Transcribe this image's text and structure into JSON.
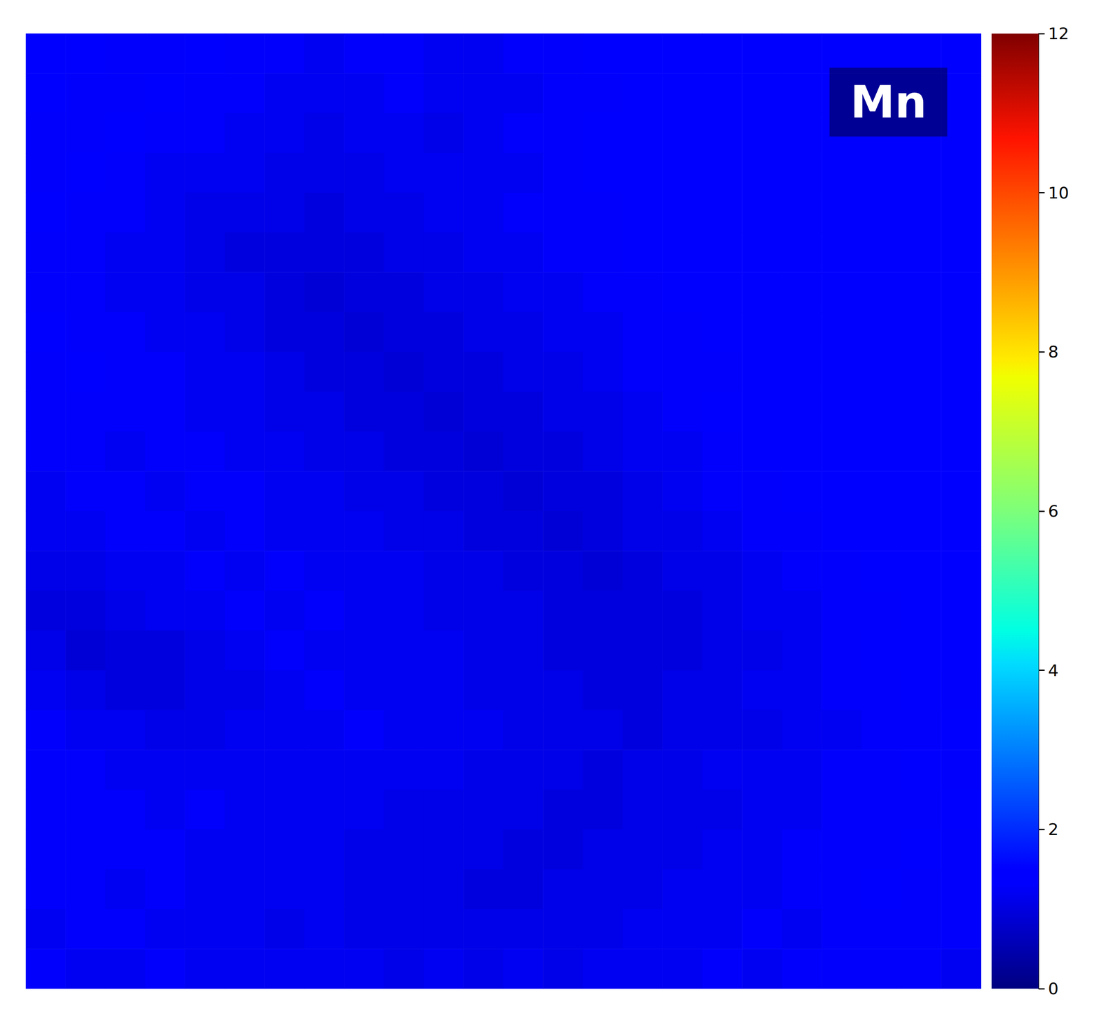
{
  "chart_data": {
    "type": "heatmap",
    "title": "Mn",
    "tick_labels": false,
    "colorbar": {
      "range": [
        0,
        12
      ],
      "ticks": [
        0,
        2,
        4,
        6,
        8,
        10,
        12
      ]
    },
    "cells": [
      [
        1.4,
        1.4,
        1.3,
        1.3,
        1.4,
        1.3,
        1.3,
        1.2,
        1.3,
        1.3,
        1.2,
        1.2,
        1.3,
        1.3,
        1.4,
        1.4,
        1.4,
        1.5,
        1.5,
        1.5,
        1.4,
        1.5,
        1.5,
        1.5
      ],
      [
        1.4,
        1.3,
        1.3,
        1.4,
        1.3,
        1.3,
        1.2,
        1.2,
        1.2,
        1.3,
        1.2,
        1.2,
        1.2,
        1.3,
        1.3,
        1.4,
        1.5,
        1.5,
        1.4,
        1.5,
        1.5,
        1.4,
        1.5,
        1.5
      ],
      [
        1.3,
        1.3,
        1.4,
        1.3,
        1.3,
        1.2,
        1.2,
        1.1,
        1.2,
        1.2,
        1.1,
        1.2,
        1.3,
        1.3,
        1.4,
        1.4,
        1.4,
        1.5,
        1.5,
        1.5,
        1.4,
        1.5,
        1.5,
        1.4
      ],
      [
        1.3,
        1.4,
        1.3,
        1.2,
        1.2,
        1.2,
        1.1,
        1.1,
        1.1,
        1.2,
        1.2,
        1.2,
        1.2,
        1.3,
        1.4,
        1.4,
        1.5,
        1.4,
        1.5,
        1.5,
        1.5,
        1.5,
        1.4,
        1.5
      ],
      [
        1.4,
        1.3,
        1.3,
        1.2,
        1.1,
        1.1,
        1.1,
        1.0,
        1.1,
        1.1,
        1.2,
        1.2,
        1.3,
        1.3,
        1.3,
        1.4,
        1.4,
        1.5,
        1.5,
        1.4,
        1.5,
        1.5,
        1.5,
        1.4
      ],
      [
        1.3,
        1.3,
        1.2,
        1.2,
        1.1,
        1.0,
        1.0,
        1.0,
        1.0,
        1.1,
        1.1,
        1.2,
        1.2,
        1.3,
        1.3,
        1.4,
        1.4,
        1.4,
        1.5,
        1.5,
        1.4,
        1.5,
        1.4,
        1.5
      ],
      [
        1.3,
        1.3,
        1.2,
        1.2,
        1.1,
        1.1,
        1.0,
        0.9,
        1.0,
        1.0,
        1.1,
        1.1,
        1.2,
        1.2,
        1.3,
        1.3,
        1.4,
        1.4,
        1.4,
        1.5,
        1.5,
        1.4,
        1.5,
        1.4
      ],
      [
        1.4,
        1.3,
        1.3,
        1.2,
        1.2,
        1.1,
        1.0,
        1.0,
        0.9,
        1.0,
        1.0,
        1.1,
        1.1,
        1.2,
        1.2,
        1.3,
        1.3,
        1.4,
        1.4,
        1.4,
        1.5,
        1.5,
        1.4,
        1.4
      ],
      [
        1.3,
        1.4,
        1.3,
        1.3,
        1.2,
        1.2,
        1.1,
        1.0,
        1.0,
        0.9,
        1.0,
        1.0,
        1.1,
        1.1,
        1.2,
        1.3,
        1.3,
        1.3,
        1.4,
        1.4,
        1.4,
        1.5,
        1.5,
        1.4
      ],
      [
        1.3,
        1.3,
        1.3,
        1.3,
        1.2,
        1.2,
        1.1,
        1.1,
        1.0,
        1.0,
        0.9,
        1.0,
        1.0,
        1.1,
        1.1,
        1.2,
        1.3,
        1.4,
        1.4,
        1.4,
        1.5,
        1.4,
        1.4,
        1.5
      ],
      [
        1.3,
        1.3,
        1.2,
        1.3,
        1.3,
        1.2,
        1.2,
        1.1,
        1.1,
        1.0,
        1.0,
        0.9,
        1.0,
        1.0,
        1.1,
        1.2,
        1.2,
        1.3,
        1.4,
        1.4,
        1.4,
        1.4,
        1.5,
        1.4
      ],
      [
        1.2,
        1.3,
        1.3,
        1.2,
        1.3,
        1.3,
        1.2,
        1.2,
        1.1,
        1.1,
        1.0,
        1.0,
        0.9,
        1.0,
        1.0,
        1.1,
        1.2,
        1.3,
        1.3,
        1.4,
        1.4,
        1.5,
        1.4,
        1.4
      ],
      [
        1.2,
        1.2,
        1.3,
        1.3,
        1.2,
        1.3,
        1.2,
        1.2,
        1.2,
        1.1,
        1.1,
        1.0,
        1.0,
        0.9,
        1.0,
        1.1,
        1.1,
        1.2,
        1.3,
        1.3,
        1.4,
        1.4,
        1.4,
        1.5
      ],
      [
        1.1,
        1.1,
        1.2,
        1.2,
        1.3,
        1.2,
        1.3,
        1.2,
        1.2,
        1.2,
        1.1,
        1.1,
        1.0,
        1.0,
        0.9,
        1.0,
        1.1,
        1.1,
        1.2,
        1.3,
        1.3,
        1.4,
        1.4,
        1.4
      ],
      [
        1.0,
        1.0,
        1.1,
        1.2,
        1.2,
        1.3,
        1.2,
        1.3,
        1.2,
        1.2,
        1.1,
        1.1,
        1.1,
        1.0,
        1.0,
        1.0,
        1.0,
        1.1,
        1.2,
        1.2,
        1.3,
        1.3,
        1.4,
        1.4
      ],
      [
        1.1,
        0.9,
        1.0,
        1.0,
        1.1,
        1.2,
        1.3,
        1.2,
        1.2,
        1.2,
        1.2,
        1.1,
        1.1,
        1.0,
        1.0,
        1.0,
        1.0,
        1.1,
        1.1,
        1.2,
        1.3,
        1.4,
        1.4,
        1.4
      ],
      [
        1.2,
        1.1,
        1.0,
        1.0,
        1.1,
        1.1,
        1.2,
        1.3,
        1.2,
        1.2,
        1.2,
        1.1,
        1.1,
        1.1,
        1.0,
        1.0,
        1.1,
        1.1,
        1.2,
        1.2,
        1.3,
        1.3,
        1.4,
        1.3
      ],
      [
        1.3,
        1.2,
        1.2,
        1.1,
        1.1,
        1.2,
        1.2,
        1.2,
        1.3,
        1.2,
        1.2,
        1.2,
        1.1,
        1.1,
        1.1,
        1.0,
        1.1,
        1.1,
        1.1,
        1.2,
        1.2,
        1.3,
        1.3,
        1.4
      ],
      [
        1.3,
        1.3,
        1.2,
        1.2,
        1.2,
        1.2,
        1.2,
        1.2,
        1.2,
        1.2,
        1.2,
        1.1,
        1.1,
        1.1,
        1.0,
        1.1,
        1.1,
        1.2,
        1.2,
        1.2,
        1.3,
        1.3,
        1.4,
        1.3
      ],
      [
        1.3,
        1.3,
        1.3,
        1.2,
        1.3,
        1.2,
        1.2,
        1.2,
        1.2,
        1.1,
        1.1,
        1.1,
        1.1,
        1.0,
        1.0,
        1.1,
        1.1,
        1.1,
        1.2,
        1.2,
        1.3,
        1.3,
        1.3,
        1.4
      ],
      [
        1.3,
        1.3,
        1.3,
        1.3,
        1.2,
        1.2,
        1.2,
        1.2,
        1.1,
        1.1,
        1.1,
        1.1,
        1.0,
        1.0,
        1.1,
        1.1,
        1.1,
        1.2,
        1.2,
        1.3,
        1.3,
        1.3,
        1.4,
        1.3
      ],
      [
        1.3,
        1.3,
        1.2,
        1.3,
        1.2,
        1.2,
        1.2,
        1.2,
        1.1,
        1.1,
        1.1,
        1.0,
        1.0,
        1.1,
        1.1,
        1.1,
        1.2,
        1.2,
        1.2,
        1.3,
        1.3,
        1.4,
        1.3,
        1.3
      ],
      [
        1.2,
        1.3,
        1.3,
        1.2,
        1.2,
        1.2,
        1.1,
        1.2,
        1.1,
        1.1,
        1.1,
        1.1,
        1.1,
        1.1,
        1.1,
        1.2,
        1.2,
        1.2,
        1.3,
        1.2,
        1.3,
        1.3,
        1.3,
        1.3
      ],
      [
        1.3,
        1.2,
        1.2,
        1.3,
        1.2,
        1.2,
        1.2,
        1.2,
        1.2,
        1.1,
        1.2,
        1.1,
        1.2,
        1.1,
        1.2,
        1.2,
        1.2,
        1.3,
        1.2,
        1.3,
        1.3,
        1.3,
        1.3,
        1.2
      ]
    ]
  }
}
